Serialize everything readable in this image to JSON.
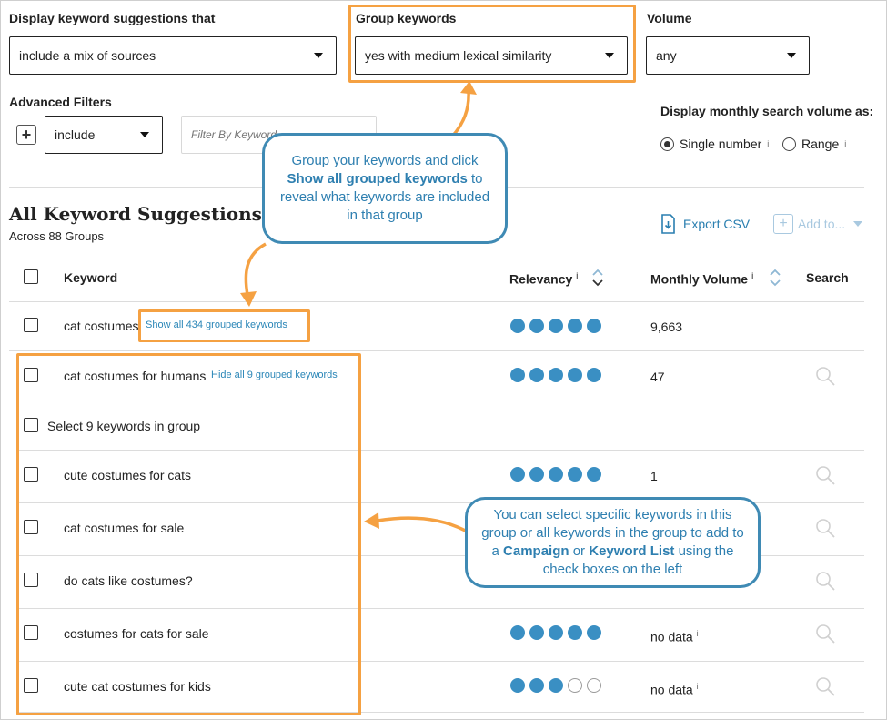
{
  "filters": {
    "suggestions_label": "Display keyword suggestions that",
    "suggestions_value": "include a mix of sources",
    "group_label": "Group keywords",
    "group_value": "yes with medium lexical similarity",
    "volume_label": "Volume",
    "volume_value": "any",
    "advanced_label": "Advanced Filters",
    "include_value": "include",
    "filter_placeholder": "Filter By Keyword",
    "display_volume_label": "Display monthly search volume as:",
    "radio_single": "Single number",
    "radio_range": "Range",
    "info_mark": "i"
  },
  "section": {
    "title": "All Keyword Suggestions",
    "subtitle": "Across 88 Groups",
    "export_label": "Export CSV",
    "add_to_label": "Add to..."
  },
  "table": {
    "col_keyword": "Keyword",
    "col_relevancy": "Relevancy",
    "col_volume": "Monthly Volume",
    "col_search": "Search",
    "rows": [
      {
        "keyword": "cat costumes",
        "link": "Show all 434 grouped keywords",
        "dots": 5,
        "volume": "9,663"
      },
      {
        "keyword": "cat costumes for humans",
        "link": "Hide all 9 grouped keywords",
        "dots": 5,
        "volume": "47"
      },
      {
        "keyword": "Select 9 keywords in group"
      },
      {
        "keyword": "cute costumes for cats",
        "dots": 5,
        "volume": "1"
      },
      {
        "keyword": "cat costumes for sale"
      },
      {
        "keyword": "do cats like costumes?"
      },
      {
        "keyword": "costumes for cats for sale",
        "dots": 5,
        "volume": "no data"
      },
      {
        "keyword": "cute cat costumes for kids",
        "dots": 3,
        "volume": "no data"
      }
    ]
  },
  "callouts": {
    "top_1": "Group your keywords and click",
    "top_bold": "Show all grouped keywords",
    "top_2": "to reveal what keywords are included in that group",
    "bottom_1": "You can select specific keywords in this group or all keywords in the group to add to a",
    "bottom_bold1": "Campaign",
    "bottom_or": "or",
    "bottom_bold2": "Keyword List",
    "bottom_2": "using the check boxes on the left"
  },
  "colors": {
    "highlight": "#f5a142",
    "callout": "#3f8ab4",
    "relevancy": "#3a8fc3"
  }
}
